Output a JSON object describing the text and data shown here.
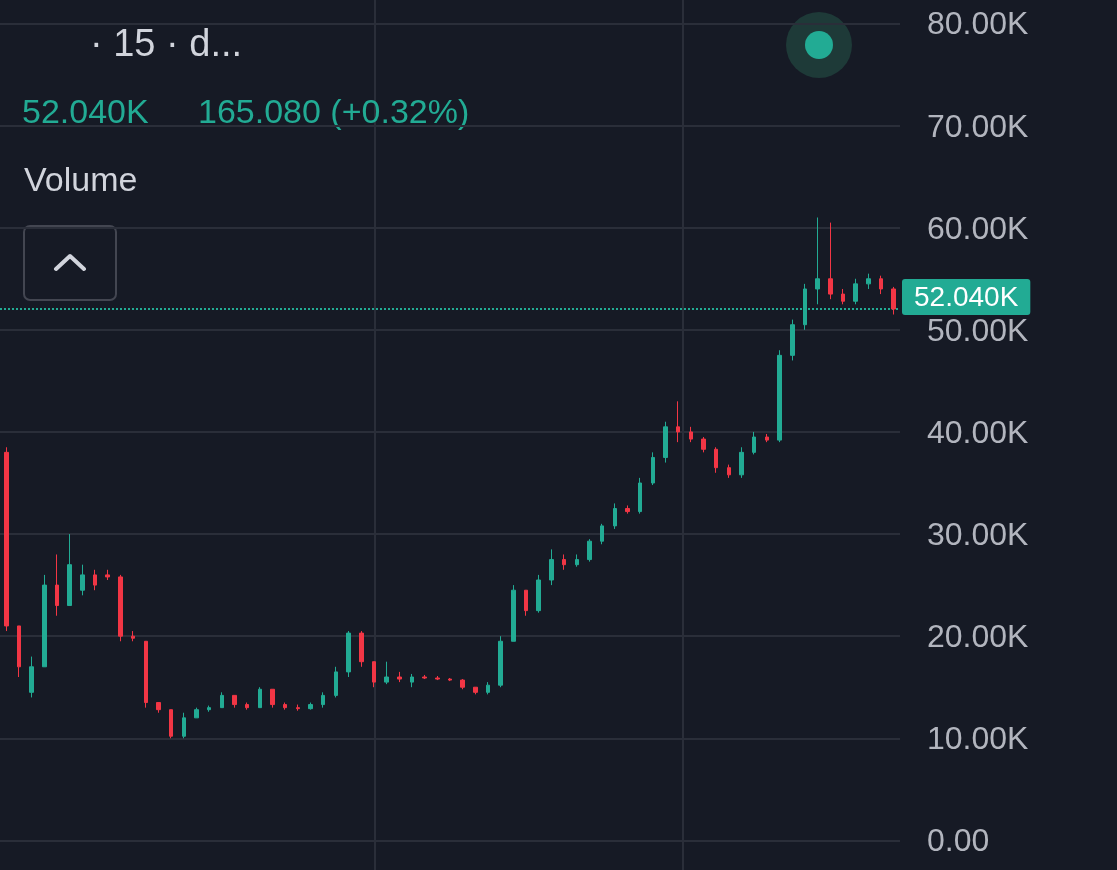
{
  "chart_data": {
    "type": "candlestick",
    "title": "· 15 · d...",
    "annotations": [
      "52.040K",
      "165.080 (+0.32%)",
      "Volume"
    ],
    "categories": [
      null,
      null,
      null,
      null,
      null,
      null,
      null,
      null,
      null,
      null,
      null,
      null,
      null,
      null,
      null,
      null,
      null,
      null,
      null,
      null,
      null,
      null,
      null,
      null,
      null,
      null,
      null,
      null,
      null,
      null,
      null,
      null,
      null,
      null,
      null,
      null,
      null,
      null,
      null,
      null,
      null,
      null,
      null,
      null,
      null,
      null,
      null,
      null,
      null,
      null,
      null,
      null,
      null,
      null,
      null,
      null,
      null,
      null,
      null,
      null,
      null,
      null,
      null,
      null,
      null,
      null,
      null,
      null,
      null,
      null,
      null
    ],
    "ohlc": [
      [
        38000,
        38500,
        20500,
        21000
      ],
      [
        21000,
        21000,
        16000,
        17000
      ],
      [
        14500,
        18000,
        14000,
        17000
      ],
      [
        17000,
        26000,
        17000,
        25000
      ],
      [
        25000,
        28000,
        22000,
        23000
      ],
      [
        23000,
        30000,
        23000,
        27000
      ],
      [
        24500,
        27000,
        24000,
        26000
      ],
      [
        26000,
        26500,
        24500,
        25000
      ],
      [
        26000,
        26500,
        25500,
        25800
      ],
      [
        25800,
        26000,
        19500,
        20000
      ],
      [
        20000,
        20500,
        19500,
        19800
      ],
      [
        19500,
        19500,
        13000,
        13500
      ],
      [
        13500,
        13500,
        12500,
        12800
      ],
      [
        12800,
        12800,
        10000,
        10200
      ],
      [
        10200,
        12500,
        10000,
        12000
      ],
      [
        12000,
        13000,
        12000,
        12800
      ],
      [
        12800,
        13200,
        12600,
        13000
      ],
      [
        13000,
        14500,
        13000,
        14200
      ],
      [
        14200,
        14200,
        13000,
        13300
      ],
      [
        13300,
        13500,
        12800,
        13000
      ],
      [
        13000,
        15000,
        13000,
        14800
      ],
      [
        14800,
        14800,
        13000,
        13300
      ],
      [
        13300,
        13500,
        12800,
        13000
      ],
      [
        13000,
        13300,
        12700,
        12900
      ],
      [
        12900,
        13500,
        12800,
        13300
      ],
      [
        13300,
        14500,
        13000,
        14200
      ],
      [
        14200,
        17000,
        14000,
        16500
      ],
      [
        16500,
        20500,
        16000,
        20300
      ],
      [
        20300,
        20500,
        17000,
        17500
      ],
      [
        17500,
        17500,
        15000,
        15500
      ],
      [
        15500,
        17500,
        15300,
        16000
      ],
      [
        16000,
        16500,
        15500,
        15800
      ],
      [
        15500,
        16300,
        15000,
        16000
      ],
      [
        16000,
        16200,
        15800,
        15900
      ],
      [
        15900,
        16100,
        15700,
        15800
      ],
      [
        15800,
        15900,
        15600,
        15700
      ],
      [
        15700,
        15800,
        14800,
        15000
      ],
      [
        15000,
        15000,
        14300,
        14500
      ],
      [
        14500,
        15500,
        14300,
        15200
      ],
      [
        15200,
        20000,
        15000,
        19500
      ],
      [
        19500,
        25000,
        19500,
        24500
      ],
      [
        24500,
        24500,
        22000,
        22500
      ],
      [
        22500,
        26000,
        22300,
        25500
      ],
      [
        25500,
        28500,
        25000,
        27500
      ],
      [
        27500,
        28000,
        26500,
        27000
      ],
      [
        27000,
        28000,
        26800,
        27500
      ],
      [
        27500,
        29500,
        27300,
        29300
      ],
      [
        29300,
        31000,
        29000,
        30800
      ],
      [
        30800,
        33000,
        30500,
        32500
      ],
      [
        32500,
        32800,
        32000,
        32200
      ],
      [
        32200,
        35500,
        32000,
        35000
      ],
      [
        35000,
        38000,
        34800,
        37500
      ],
      [
        37500,
        41000,
        37000,
        40500
      ],
      [
        40500,
        43000,
        39000,
        40000
      ],
      [
        40000,
        40500,
        39000,
        39300
      ],
      [
        39300,
        39500,
        38000,
        38300
      ],
      [
        38300,
        38500,
        36000,
        36500
      ],
      [
        36500,
        36800,
        35500,
        35800
      ],
      [
        35800,
        38500,
        35500,
        38000
      ],
      [
        38000,
        40000,
        37800,
        39500
      ],
      [
        39500,
        39800,
        39000,
        39200
      ],
      [
        39200,
        48000,
        39000,
        47500
      ],
      [
        47500,
        51000,
        47000,
        50500
      ],
      [
        50500,
        54500,
        50000,
        54000
      ],
      [
        54000,
        61000,
        52500,
        55000
      ],
      [
        55000,
        60500,
        53000,
        53500
      ],
      [
        53500,
        54000,
        52500,
        52800
      ],
      [
        52800,
        55000,
        52500,
        54500
      ],
      [
        54500,
        55500,
        54000,
        55000
      ],
      [
        55000,
        55300,
        53500,
        54000
      ],
      [
        54000,
        54200,
        51500,
        52040
      ]
    ],
    "colors": [
      "#f23645",
      "#f23645",
      "#22ab94",
      "#22ab94",
      "#f23645",
      "#22ab94",
      "#22ab94",
      "#f23645",
      "#f23645",
      "#f23645",
      "#f23645",
      "#f23645",
      "#f23645",
      "#f23645",
      "#22ab94",
      "#22ab94",
      "#22ab94",
      "#22ab94",
      "#f23645",
      "#f23645",
      "#22ab94",
      "#f23645",
      "#f23645",
      "#f23645",
      "#22ab94",
      "#22ab94",
      "#22ab94",
      "#22ab94",
      "#f23645",
      "#f23645",
      "#22ab94",
      "#f23645",
      "#22ab94",
      "#f23645",
      "#f23645",
      "#f23645",
      "#f23645",
      "#f23645",
      "#22ab94",
      "#22ab94",
      "#22ab94",
      "#f23645",
      "#22ab94",
      "#22ab94",
      "#f23645",
      "#22ab94",
      "#22ab94",
      "#22ab94",
      "#22ab94",
      "#f23645",
      "#22ab94",
      "#22ab94",
      "#22ab94",
      "#f23645",
      "#f23645",
      "#f23645",
      "#f23645",
      "#f23645",
      "#22ab94",
      "#22ab94",
      "#f23645",
      "#22ab94",
      "#22ab94",
      "#22ab94",
      "#22ab94",
      "#f23645",
      "#f23645",
      "#22ab94",
      "#22ab94",
      "#f23645",
      "#f23645"
    ],
    "ylim": [
      -2900,
      82300
    ],
    "yticks": [
      {
        "value": 0,
        "label": "0.00"
      },
      {
        "value": 10000,
        "label": "10.00K"
      },
      {
        "value": 20000,
        "label": "20.00K"
      },
      {
        "value": 30000,
        "label": "30.00K"
      },
      {
        "value": 40000,
        "label": "40.00K"
      },
      {
        "value": 50000,
        "label": "50.00K"
      },
      {
        "value": 60000,
        "label": "60.00K"
      },
      {
        "value": 70000,
        "label": "70.00K"
      },
      {
        "value": 80000,
        "label": "80.00K"
      }
    ],
    "grid": "y",
    "ref_lines": [
      {
        "axis": "y",
        "value": 52040,
        "label": "52.040K",
        "color": "#22ab94",
        "line_style": "dotted"
      }
    ]
  }
}
